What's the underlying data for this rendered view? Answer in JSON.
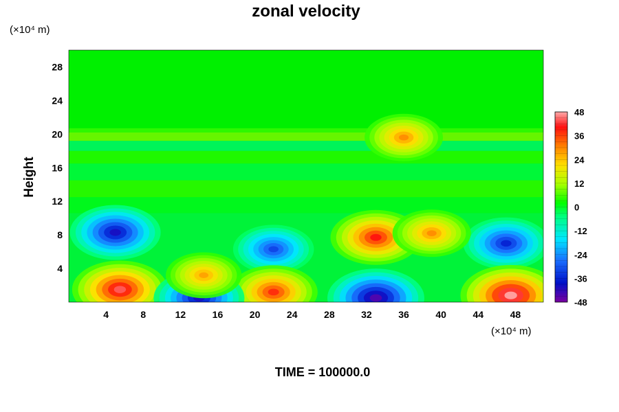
{
  "chart_data": {
    "type": "heatmap",
    "title": "zonal velocity",
    "ylabel": "Height",
    "xlabel": "",
    "x_unit": "(×10⁴ m)",
    "y_unit": "(×10⁴ m)",
    "x_ticks": [
      4,
      8,
      12,
      16,
      20,
      24,
      28,
      32,
      36,
      40,
      44,
      48
    ],
    "y_ticks": [
      4,
      8,
      12,
      16,
      20,
      24,
      28
    ],
    "xlim": [
      0,
      51
    ],
    "ylim": [
      0,
      30
    ],
    "colorbar": {
      "range": [
        -48,
        48
      ],
      "ticks": [
        48,
        36,
        24,
        12,
        0,
        -12,
        -24,
        -36,
        -48
      ]
    },
    "footer": "TIME = 100000.0",
    "features": [
      {
        "x": 5,
        "y": 8.3,
        "value": -40
      },
      {
        "x": 22,
        "y": 6.3,
        "value": -32
      },
      {
        "x": 47,
        "y": 7,
        "value": -36
      },
      {
        "x": 33,
        "y": 7.7,
        "value": 40
      },
      {
        "x": 39,
        "y": 8.2,
        "value": 30
      },
      {
        "x": 5.5,
        "y": 1.5,
        "value": 44
      },
      {
        "x": 22,
        "y": 1.2,
        "value": 38
      },
      {
        "x": 47.5,
        "y": 0.8,
        "value": 48
      },
      {
        "x": 33,
        "y": 0.5,
        "value": -45
      },
      {
        "x": 14,
        "y": 0.5,
        "value": -40
      },
      {
        "x": 14.5,
        "y": 3.2,
        "value": 28
      },
      {
        "x": 36,
        "y": 19.6,
        "value": 30
      }
    ]
  }
}
